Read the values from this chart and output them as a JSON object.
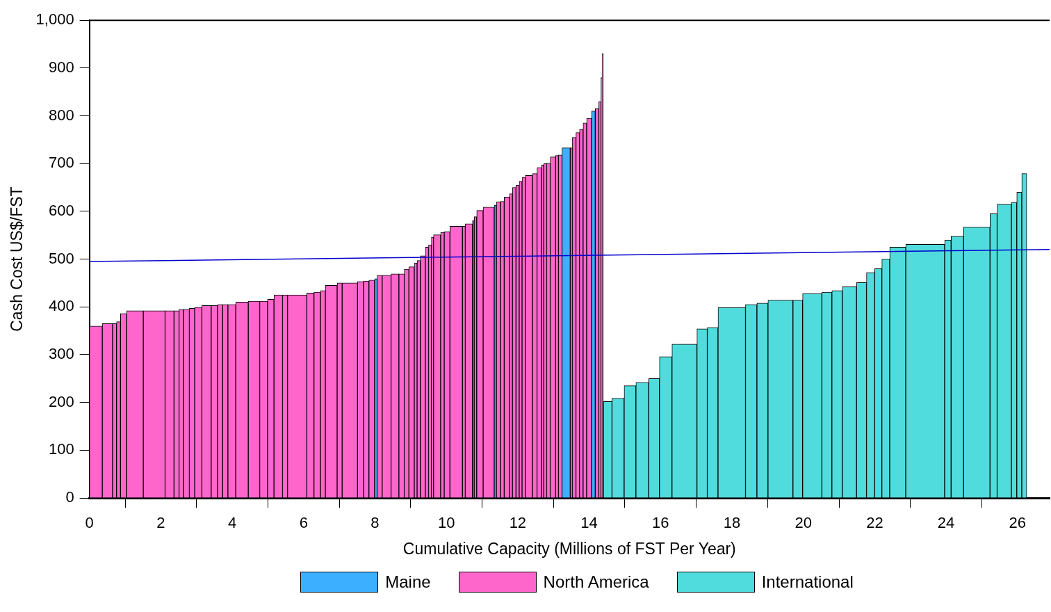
{
  "chart_data": {
    "type": "histogram",
    "xlabel": "Cumulative Capacity (Millions of FST Per Year)",
    "ylabel": "Cash Cost US$/FST",
    "xlim": [
      0,
      26.9
    ],
    "xticks": [
      0,
      2,
      4,
      6,
      8,
      10,
      12,
      14,
      16,
      18,
      20,
      22,
      24,
      26
    ],
    "ylim": [
      0,
      1000
    ],
    "yticks": [
      0,
      100,
      200,
      300,
      400,
      500,
      600,
      700,
      800,
      900,
      {
        "value": 1000,
        "label": "1,000"
      }
    ],
    "grid": false,
    "legend": "bottom",
    "series": [
      {
        "name": "Maine",
        "color": "#3cb0ff",
        "bins": [
          7.99,
          8.06,
          11.34,
          11.4,
          13.24,
          13.47,
          14.07,
          14.17
        ],
        "values": [
          459,
          null,
          613,
          null,
          733,
          null,
          810
        ]
      },
      {
        "name": "North America",
        "color": "#ff66cc",
        "bins": [
          0,
          0.36,
          0.65,
          0.76,
          0.87,
          1.04,
          1.51,
          2.12,
          2.37,
          2.51,
          2.63,
          2.8,
          2.95,
          3.15,
          3.41,
          3.59,
          3.73,
          3.88,
          4.1,
          4.45,
          4.77,
          4.99,
          5.17,
          5.41,
          5.55,
          6.09,
          6.29,
          6.47,
          6.61,
          6.94,
          7.08,
          7.51,
          7.68,
          7.83,
          7.99,
          8.06,
          8.2,
          8.45,
          8.67,
          8.82,
          8.95,
          9.1,
          9.18,
          9.27,
          9.41,
          9.5,
          9.58,
          9.64,
          9.84,
          9.94,
          10.1,
          10.45,
          10.53,
          10.73,
          10.78,
          10.85,
          11.03,
          11.34,
          11.4,
          11.52,
          11.62,
          11.77,
          11.85,
          11.95,
          12.04,
          12.12,
          12.21,
          12.41,
          12.54,
          12.66,
          12.73,
          12.81,
          12.91,
          13.06,
          13.14,
          13.24,
          13.47,
          13.53,
          13.63,
          13.73,
          13.83,
          13.93,
          14.07,
          14.17,
          14.27,
          14.33,
          14.36,
          14.4
        ],
        "values": [
          360,
          365,
          365,
          369,
          386,
          392,
          392,
          392,
          392,
          395,
          395,
          397,
          399,
          403,
          403,
          405,
          405,
          405,
          410,
          412,
          412,
          416,
          425,
          425,
          425,
          429,
          431,
          434,
          445,
          450,
          450,
          453,
          454,
          456,
          null,
          466,
          466,
          469,
          469,
          479,
          484,
          492,
          497,
          507,
          525,
          530,
          546,
          551,
          556,
          557,
          569,
          569,
          574,
          581,
          589,
          602,
          609,
          null,
          620,
          621,
          630,
          637,
          650,
          655,
          663,
          671,
          675,
          679,
          692,
          697,
          700,
          701,
          714,
          717,
          718,
          null,
          733,
          755,
          765,
          772,
          785,
          795,
          null,
          815,
          830,
          880,
          930
        ]
      },
      {
        "name": "International",
        "color": "#50dcdc",
        "bins": [
          14.4,
          14.64,
          14.98,
          15.31,
          15.67,
          15.97,
          16.32,
          17.02,
          17.31,
          17.61,
          18.38,
          18.7,
          19.01,
          19.71,
          19.98,
          20.52,
          20.8,
          21.09,
          21.49,
          21.77,
          22.0,
          22.2,
          22.42,
          22.87,
          23.96,
          24.14,
          24.49,
          25.23,
          25.43,
          25.83,
          25.98,
          26.12,
          26.26
        ],
        "values": [
          202,
          209,
          235,
          242,
          250,
          296,
          322,
          354,
          357,
          399,
          405,
          408,
          414,
          414,
          428,
          431,
          434,
          442,
          451,
          472,
          480,
          500,
          525,
          531,
          540,
          548,
          567,
          595,
          615,
          619,
          640,
          679
        ]
      },
      {
        "type": "line",
        "color": "#0000cc",
        "x": [
          0,
          26.9
        ],
        "values": [
          495,
          520
        ]
      }
    ]
  }
}
